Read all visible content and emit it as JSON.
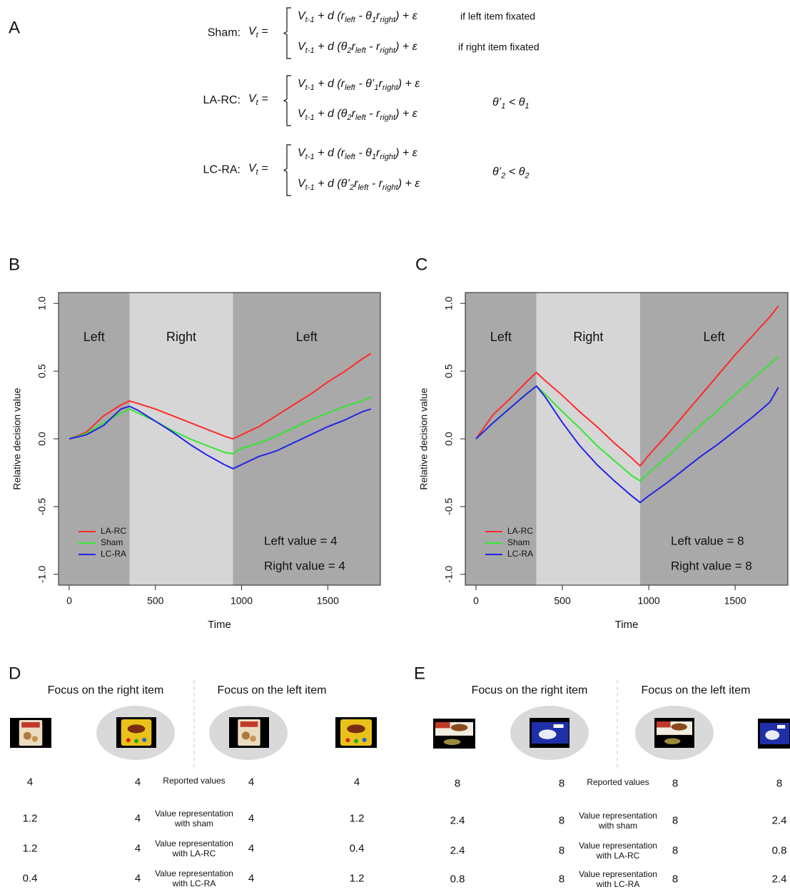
{
  "panel_a": {
    "label": "A",
    "models": [
      {
        "name": "Sham:",
        "lhs": [
          "V",
          "t",
          " ="
        ],
        "cases": [
          {
            "expr": [
              "V",
              "t-1",
              " + d (r",
              "left",
              " - θ",
              "1",
              "r",
              "right",
              ") + ε"
            ],
            "condition": "if left item fixated"
          },
          {
            "expr": [
              "V",
              "t-1",
              " + d (θ",
              "2",
              "r",
              "left",
              " - r",
              "right",
              ") + ε"
            ],
            "condition": "if right item fixated"
          }
        ]
      },
      {
        "name": "LA-RC:",
        "lhs": [
          "V",
          "t",
          " ="
        ],
        "cases": [
          {
            "expr": [
              "V",
              "t-1",
              " + d (r",
              "left",
              " - θ’",
              "1",
              "r",
              "right",
              ") + ε"
            ]
          },
          {
            "expr": [
              "V",
              "t-1",
              " + d (θ",
              "2",
              "r",
              "left",
              " - r",
              "right",
              ") + ε"
            ]
          }
        ],
        "constraint": [
          "θ’",
          "1",
          " < θ",
          "1"
        ]
      },
      {
        "name": "LC-RA:",
        "lhs": [
          "V",
          "t",
          " ="
        ],
        "cases": [
          {
            "expr": [
              "V",
              "t-1",
              " + d (r",
              "left",
              " - θ",
              "1",
              "r",
              "right",
              ") + ε"
            ]
          },
          {
            "expr": [
              "V",
              "t-1",
              " + d (θ’",
              "2",
              "r",
              "left",
              " - r",
              "right",
              ") + ε"
            ]
          }
        ],
        "constraint": [
          "θ’",
          "2",
          " < θ",
          "2"
        ]
      }
    ]
  },
  "chart_data": [
    {
      "type": "line",
      "panel_label": "B",
      "x_label": "Time",
      "y_label": "Relative decision value",
      "xlim": [
        -62,
        1805
      ],
      "ylim": [
        -1.08,
        1.08
      ],
      "xticks": [
        0,
        500,
        1000,
        1500
      ],
      "yticks": [
        {
          "value": -1,
          "label": "-1.0"
        },
        {
          "value": -0.5,
          "label": "-0.5"
        },
        {
          "value": 0,
          "label": "0.0"
        },
        {
          "value": 0.5,
          "label": "0.5"
        },
        {
          "value": 1,
          "label": "1.0"
        }
      ],
      "regions": [
        {
          "label": "Left",
          "from": -62,
          "to": 350,
          "color": "#a9a9a9"
        },
        {
          "label": "Right",
          "from": 350,
          "to": 950,
          "color": "#d6d6d6"
        },
        {
          "label": "Left",
          "from": 950,
          "to": 1805,
          "color": "#a9a9a9"
        }
      ],
      "legend": "bottom left",
      "annotations": [
        "Left value = 4",
        "Right value = 4"
      ],
      "x": [
        0,
        100,
        200,
        300,
        350,
        400,
        500,
        600,
        700,
        800,
        900,
        950,
        1000,
        1100,
        1200,
        1300,
        1400,
        1500,
        1600,
        1700,
        1750
      ],
      "series": [
        {
          "name": "LA-RC",
          "color": "#ff2a2a",
          "values": [
            0,
            0.05,
            0.17,
            0.25,
            0.28,
            0.26,
            0.22,
            0.17,
            0.12,
            0.07,
            0.02,
            0.0,
            0.03,
            0.09,
            0.17,
            0.25,
            0.33,
            0.42,
            0.5,
            0.59,
            0.63
          ]
        },
        {
          "name": "Sham",
          "color": "#33e633",
          "values": [
            0,
            0.04,
            0.12,
            0.19,
            0.22,
            0.19,
            0.13,
            0.06,
            0.0,
            -0.05,
            -0.1,
            -0.11,
            -0.07,
            -0.03,
            0.02,
            0.08,
            0.14,
            0.19,
            0.24,
            0.28,
            0.31
          ]
        },
        {
          "name": "LC-RA",
          "color": "#2323e8",
          "values": [
            0,
            0.03,
            0.1,
            0.22,
            0.24,
            0.21,
            0.13,
            0.05,
            -0.04,
            -0.12,
            -0.19,
            -0.22,
            -0.19,
            -0.13,
            -0.09,
            -0.03,
            0.03,
            0.09,
            0.14,
            0.2,
            0.22
          ]
        }
      ]
    },
    {
      "type": "line",
      "panel_label": "C",
      "x_label": "Time",
      "y_label": "Relative decision value",
      "xlim": [
        -62,
        1805
      ],
      "ylim": [
        -1.08,
        1.08
      ],
      "xticks": [
        0,
        500,
        1000,
        1500
      ],
      "yticks": [
        {
          "value": -1,
          "label": "-1.0"
        },
        {
          "value": -0.5,
          "label": "-0.5"
        },
        {
          "value": 0,
          "label": "0.0"
        },
        {
          "value": 0.5,
          "label": "0.5"
        },
        {
          "value": 1,
          "label": "1.0"
        }
      ],
      "regions": [
        {
          "label": "Left",
          "from": -62,
          "to": 350,
          "color": "#a9a9a9"
        },
        {
          "label": "Right",
          "from": 350,
          "to": 950,
          "color": "#d6d6d6"
        },
        {
          "label": "Left",
          "from": 950,
          "to": 1805,
          "color": "#a9a9a9"
        }
      ],
      "legend": "bottom left",
      "annotations": [
        "Left value = 8",
        "Right value = 8"
      ],
      "x": [
        0,
        100,
        200,
        300,
        350,
        400,
        500,
        600,
        700,
        800,
        900,
        950,
        1000,
        1100,
        1200,
        1300,
        1400,
        1500,
        1600,
        1700,
        1750
      ],
      "series": [
        {
          "name": "LA-RC",
          "color": "#ff2a2a",
          "values": [
            0,
            0.18,
            0.3,
            0.43,
            0.49,
            0.43,
            0.32,
            0.2,
            0.09,
            -0.03,
            -0.14,
            -0.2,
            -0.12,
            0.02,
            0.17,
            0.32,
            0.47,
            0.62,
            0.76,
            0.9,
            0.98
          ]
        },
        {
          "name": "Sham",
          "color": "#33e633",
          "values": [
            0,
            0.12,
            0.23,
            0.34,
            0.39,
            0.33,
            0.2,
            0.08,
            -0.05,
            -0.16,
            -0.27,
            -0.31,
            -0.25,
            -0.14,
            -0.02,
            0.1,
            0.21,
            0.33,
            0.44,
            0.55,
            0.61
          ]
        },
        {
          "name": "LC-RA",
          "color": "#2323e8",
          "values": [
            0,
            0.12,
            0.23,
            0.34,
            0.39,
            0.31,
            0.12,
            -0.05,
            -0.19,
            -0.31,
            -0.42,
            -0.47,
            -0.42,
            -0.33,
            -0.23,
            -0.13,
            -0.04,
            0.06,
            0.16,
            0.27,
            0.38
          ]
        }
      ]
    }
  ],
  "panel_d": {
    "label": "D",
    "headers": [
      "Focus on the right item",
      "Focus on the left item"
    ],
    "rows": [
      [
        "4",
        "4",
        "Reported values",
        "4",
        "4"
      ],
      [
        "1.2",
        "4",
        "Value representation with sham",
        "4",
        "1.2"
      ],
      [
        "1.2",
        "4",
        "Value representation with LA-RC",
        "4",
        "0.4"
      ],
      [
        "0.4",
        "4",
        "Value representation with LC-RA",
        "4",
        "1.2"
      ]
    ]
  },
  "panel_e": {
    "label": "E",
    "headers": [
      "Focus on the right item",
      "Focus on the left item"
    ],
    "rows": [
      [
        "8",
        "8",
        "Reported values",
        "8",
        "8"
      ],
      [
        "2.4",
        "8",
        "Value representation with sham",
        "8",
        "2.4"
      ],
      [
        "2.4",
        "8",
        "Value representation with LA-RC",
        "8",
        "0.8"
      ],
      [
        "0.8",
        "8",
        "Value representation with LC-RA",
        "8",
        "2.4"
      ]
    ]
  }
}
